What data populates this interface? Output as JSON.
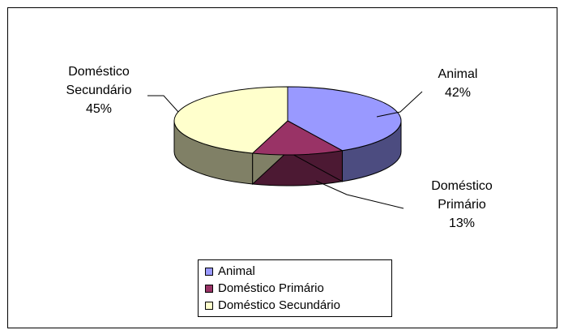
{
  "chart_data": {
    "type": "pie",
    "title": "",
    "labels": [
      "Animal",
      "Doméstico Primário",
      "Doméstico Secundário"
    ],
    "values": [
      42,
      13,
      45
    ],
    "colors": [
      "#9999ff",
      "#993366",
      "#ffffcc"
    ],
    "side_colors": [
      "#4c4c80",
      "#4c1933",
      "#808066"
    ],
    "value_labels": [
      "42%",
      "13%",
      "45%"
    ],
    "slice_label_lines": [
      [
        "Animal",
        "42%"
      ],
      [
        "Doméstico",
        "Primário",
        "13%"
      ],
      [
        "Doméstico",
        "Secundário",
        "45%"
      ]
    ],
    "legend": {
      "position": "bottom",
      "items": [
        "Animal",
        "Doméstico Primário",
        "Doméstico Secundário"
      ]
    },
    "style": "3d-pie"
  }
}
